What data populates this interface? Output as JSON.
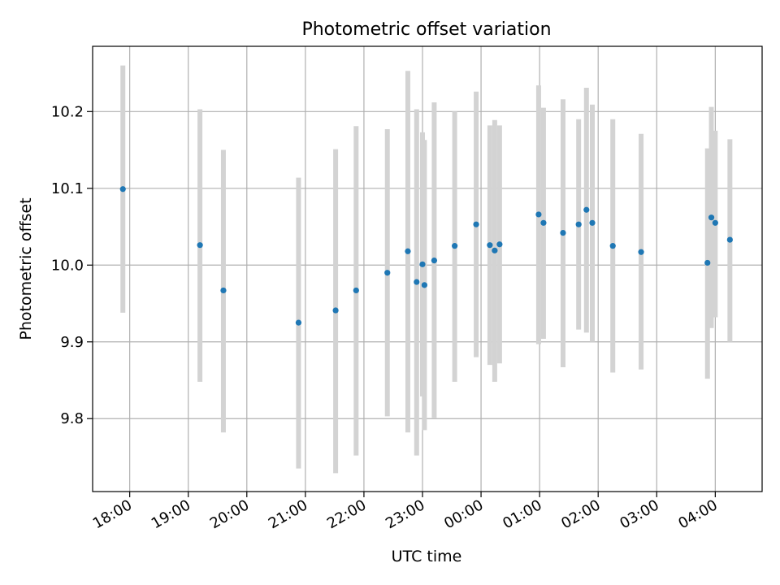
{
  "chart_data": {
    "type": "scatter",
    "title": "Photometric offset variation",
    "xlabel": "UTC time",
    "ylabel": "Photometric offset",
    "grid": true,
    "legend": "none",
    "xlim": [
      "17:22",
      "04:48"
    ],
    "ylim": [
      9.705,
      10.285
    ],
    "x_ticks": [
      "18:00",
      "19:00",
      "20:00",
      "21:00",
      "22:00",
      "23:00",
      "00:00",
      "01:00",
      "02:00",
      "03:00",
      "04:00"
    ],
    "y_ticks": [
      "9.8",
      "9.9",
      "10.0",
      "10.1",
      "10.2"
    ],
    "colors": {
      "points": "#1f77b4",
      "errorbars": "#d3d3d3",
      "grid": "#b0b0b0"
    },
    "series": [
      {
        "points": [
          {
            "x": "17:53",
            "y": 10.099,
            "ylow": 9.938,
            "yhigh": 10.26
          },
          {
            "x": "19:12",
            "y": 10.026,
            "ylow": 9.848,
            "yhigh": 10.203
          },
          {
            "x": "19:36",
            "y": 9.967,
            "ylow": 9.782,
            "yhigh": 10.15
          },
          {
            "x": "20:53",
            "y": 9.925,
            "ylow": 9.735,
            "yhigh": 10.114
          },
          {
            "x": "21:31",
            "y": 9.941,
            "ylow": 9.729,
            "yhigh": 10.151
          },
          {
            "x": "21:52",
            "y": 9.967,
            "ylow": 9.752,
            "yhigh": 10.181
          },
          {
            "x": "22:24",
            "y": 9.99,
            "ylow": 9.803,
            "yhigh": 10.177
          },
          {
            "x": "22:45",
            "y": 10.018,
            "ylow": 9.782,
            "yhigh": 10.253
          },
          {
            "x": "22:54",
            "y": 9.978,
            "ylow": 9.752,
            "yhigh": 10.203
          },
          {
            "x": "23:00",
            "y": 10.001,
            "ylow": 9.829,
            "yhigh": 10.173
          },
          {
            "x": "23:02",
            "y": 9.974,
            "ylow": 9.785,
            "yhigh": 10.163
          },
          {
            "x": "23:12",
            "y": 10.006,
            "ylow": 9.801,
            "yhigh": 10.212
          },
          {
            "x": "23:33",
            "y": 10.025,
            "ylow": 9.848,
            "yhigh": 10.2
          },
          {
            "x": "23:55",
            "y": 10.053,
            "ylow": 9.88,
            "yhigh": 10.226
          },
          {
            "x": "00:09",
            "y": 10.026,
            "ylow": 9.87,
            "yhigh": 10.182
          },
          {
            "x": "00:14",
            "y": 10.019,
            "ylow": 9.848,
            "yhigh": 10.189
          },
          {
            "x": "00:19",
            "y": 10.027,
            "ylow": 9.872,
            "yhigh": 10.182
          },
          {
            "x": "00:59",
            "y": 10.066,
            "ylow": 9.897,
            "yhigh": 10.234
          },
          {
            "x": "01:04",
            "y": 10.055,
            "ylow": 9.904,
            "yhigh": 10.205
          },
          {
            "x": "01:24",
            "y": 10.042,
            "ylow": 9.867,
            "yhigh": 10.216
          },
          {
            "x": "01:40",
            "y": 10.053,
            "ylow": 9.916,
            "yhigh": 10.19
          },
          {
            "x": "01:48",
            "y": 10.072,
            "ylow": 9.912,
            "yhigh": 10.231
          },
          {
            "x": "01:54",
            "y": 10.055,
            "ylow": 9.9,
            "yhigh": 10.209
          },
          {
            "x": "02:15",
            "y": 10.025,
            "ylow": 9.86,
            "yhigh": 10.19
          },
          {
            "x": "02:44",
            "y": 10.017,
            "ylow": 9.864,
            "yhigh": 10.171
          },
          {
            "x": "03:52",
            "y": 10.003,
            "ylow": 9.852,
            "yhigh": 10.152
          },
          {
            "x": "03:56",
            "y": 10.062,
            "ylow": 9.918,
            "yhigh": 10.206
          },
          {
            "x": "04:00",
            "y": 10.055,
            "ylow": 9.932,
            "yhigh": 10.175
          },
          {
            "x": "04:15",
            "y": 10.033,
            "ylow": 9.9,
            "yhigh": 10.164
          }
        ]
      }
    ]
  }
}
